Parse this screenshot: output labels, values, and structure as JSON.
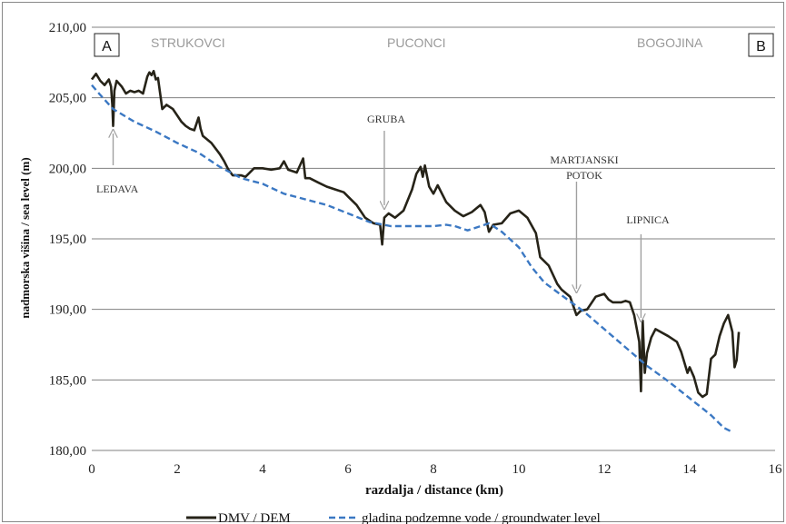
{
  "chart_data": {
    "type": "line",
    "xlabel": "razdalja / distance (km)",
    "ylabel": "nadmorska višina / sea level (m)",
    "xlim": [
      0,
      16
    ],
    "ylim": [
      180,
      210
    ],
    "x_ticks": [
      "0",
      "2",
      "4",
      "6",
      "8",
      "10",
      "12",
      "14",
      "16"
    ],
    "y_ticks": [
      "180,00",
      "185,00",
      "190,00",
      "195,00",
      "200,00",
      "205,00",
      "210,00"
    ],
    "grid": "horizontal",
    "legend_position": "bottom",
    "series": [
      {
        "name": "DMV / DEM",
        "style": "solid",
        "color": "#262318",
        "x": [
          0.0,
          0.1,
          0.2,
          0.3,
          0.4,
          0.45,
          0.48,
          0.5,
          0.53,
          0.58,
          0.7,
          0.8,
          0.9,
          1.0,
          1.1,
          1.2,
          1.3,
          1.35,
          1.4,
          1.45,
          1.5,
          1.55,
          1.65,
          1.75,
          1.9,
          2.1,
          2.2,
          2.3,
          2.4,
          2.5,
          2.55,
          2.6,
          2.8,
          3.0,
          3.1,
          3.2,
          3.3,
          3.5,
          3.6,
          3.8,
          4.0,
          4.2,
          4.4,
          4.5,
          4.6,
          4.8,
          4.95,
          5.0,
          5.1,
          5.3,
          5.5,
          5.7,
          5.9,
          6.0,
          6.2,
          6.4,
          6.6,
          6.75,
          6.8,
          6.85,
          6.95,
          7.1,
          7.3,
          7.5,
          7.6,
          7.7,
          7.75,
          7.8,
          7.9,
          8.0,
          8.1,
          8.3,
          8.5,
          8.7,
          8.9,
          9.1,
          9.2,
          9.3,
          9.4,
          9.6,
          9.8,
          10.0,
          10.2,
          10.4,
          10.5,
          10.7,
          10.9,
          11.0,
          11.2,
          11.35,
          11.45,
          11.6,
          11.8,
          12.0,
          12.1,
          12.2,
          12.4,
          12.5,
          12.6,
          12.7,
          12.82,
          12.86,
          12.9,
          12.95,
          13.0,
          13.1,
          13.2,
          13.5,
          13.7,
          13.8,
          13.95,
          14.0,
          14.1,
          14.2,
          14.3,
          14.4,
          14.5,
          14.6,
          14.7,
          14.8,
          14.9,
          15.0,
          15.05,
          15.1,
          15.15
        ],
        "y": [
          206.3,
          206.7,
          206.2,
          205.9,
          206.3,
          205.8,
          204.5,
          203.0,
          205.5,
          206.2,
          205.8,
          205.3,
          205.5,
          205.4,
          205.5,
          205.3,
          206.5,
          206.8,
          206.6,
          206.9,
          206.3,
          206.4,
          204.2,
          204.5,
          204.2,
          203.3,
          203.0,
          202.8,
          202.7,
          203.6,
          202.8,
          202.3,
          201.8,
          201.0,
          200.5,
          199.9,
          199.5,
          199.5,
          199.4,
          200.0,
          200.0,
          199.9,
          200.0,
          200.5,
          199.9,
          199.7,
          200.7,
          199.3,
          199.3,
          199.0,
          198.7,
          198.5,
          198.3,
          198.0,
          197.4,
          196.5,
          196.1,
          196.0,
          194.6,
          196.5,
          196.8,
          196.5,
          197.0,
          198.5,
          199.6,
          200.1,
          199.4,
          200.2,
          198.7,
          198.2,
          198.8,
          197.6,
          197.0,
          196.6,
          196.9,
          197.4,
          196.9,
          195.5,
          196.0,
          196.1,
          196.8,
          197.0,
          196.5,
          195.4,
          193.7,
          193.1,
          191.8,
          191.4,
          190.9,
          189.6,
          189.9,
          190.0,
          190.9,
          191.1,
          190.7,
          190.5,
          190.5,
          190.6,
          190.5,
          189.6,
          187.7,
          184.2,
          189.2,
          185.5,
          186.9,
          188.0,
          188.6,
          188.1,
          187.7,
          187.0,
          185.5,
          185.9,
          185.2,
          184.1,
          183.8,
          184.0,
          186.5,
          186.8,
          188.1,
          189.0,
          189.6,
          188.4,
          185.9,
          186.4,
          188.4
        ],
        "annotations": [
          {
            "label": "LEDAVA",
            "x": 0.5
          },
          {
            "label": "GRUBA",
            "x": 6.85
          },
          {
            "label": "MARTJANSKI POTOK",
            "x": 11.35
          },
          {
            "label": "LIPNICA",
            "x": 12.86
          }
        ]
      },
      {
        "name": "gladina podzemne vode / groundwater level",
        "style": "dashed",
        "color": "#3b78c3",
        "x": [
          0.0,
          0.2,
          0.5,
          1.0,
          1.5,
          2.0,
          2.5,
          3.0,
          3.5,
          4.0,
          4.5,
          5.0,
          5.5,
          6.0,
          6.5,
          7.0,
          7.5,
          8.0,
          8.3,
          8.5,
          8.8,
          9.0,
          9.3,
          9.6,
          10.0,
          10.3,
          10.6,
          11.0,
          11.5,
          12.0,
          12.5,
          13.0,
          13.5,
          14.0,
          14.5,
          14.8,
          15.0
        ],
        "y": [
          205.9,
          205.2,
          204.2,
          203.3,
          202.6,
          201.8,
          201.1,
          200.1,
          199.3,
          198.9,
          198.2,
          197.8,
          197.4,
          196.8,
          196.2,
          195.9,
          195.9,
          195.9,
          196.0,
          195.9,
          195.6,
          195.8,
          196.1,
          195.5,
          194.4,
          193.0,
          191.9,
          191.0,
          189.9,
          188.6,
          187.3,
          186.0,
          184.9,
          183.7,
          182.5,
          181.6,
          181.3
        ]
      }
    ],
    "place_labels": [
      "STRUKOVCI",
      "PUCONCI",
      "BOGOJINA"
    ],
    "corner_labels": [
      "A",
      "B"
    ]
  }
}
